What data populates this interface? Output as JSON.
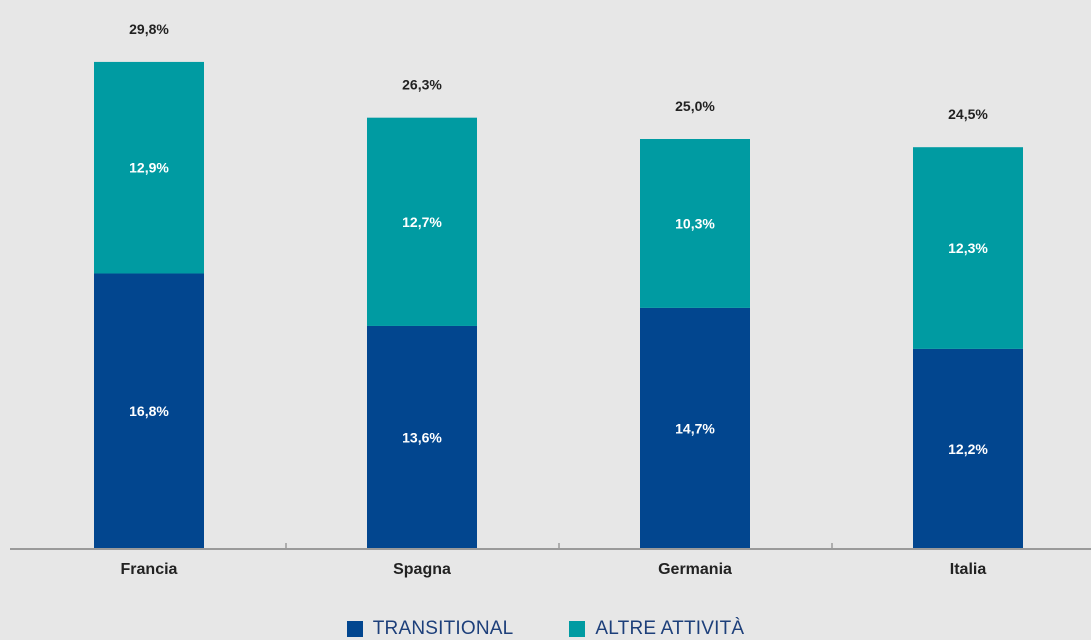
{
  "chart_data": {
    "type": "bar",
    "stacked": true,
    "categories": [
      "Francia",
      "Spagna",
      "Germania",
      "Italia"
    ],
    "series": [
      {
        "name": "TRANSITIONAL",
        "values": [
          16.8,
          13.6,
          14.7,
          12.2
        ],
        "labels": [
          "16,8%",
          "13,6%",
          "14,7%",
          "12,2%"
        ],
        "color": "#02468f"
      },
      {
        "name": "ALTRE ATTIVITÀ",
        "values": [
          12.9,
          12.7,
          10.3,
          12.3
        ],
        "labels": [
          "12,9%",
          "12,7%",
          "10,3%",
          "12,3%"
        ],
        "color": "#009ba2"
      }
    ],
    "totals": [
      29.8,
      26.3,
      25.0,
      24.5
    ],
    "total_labels": [
      "29,8%",
      "26,3%",
      "25,0%",
      "24,5%"
    ],
    "ylim": [
      0,
      32
    ],
    "grid": false,
    "legend_position": "bottom-center"
  }
}
